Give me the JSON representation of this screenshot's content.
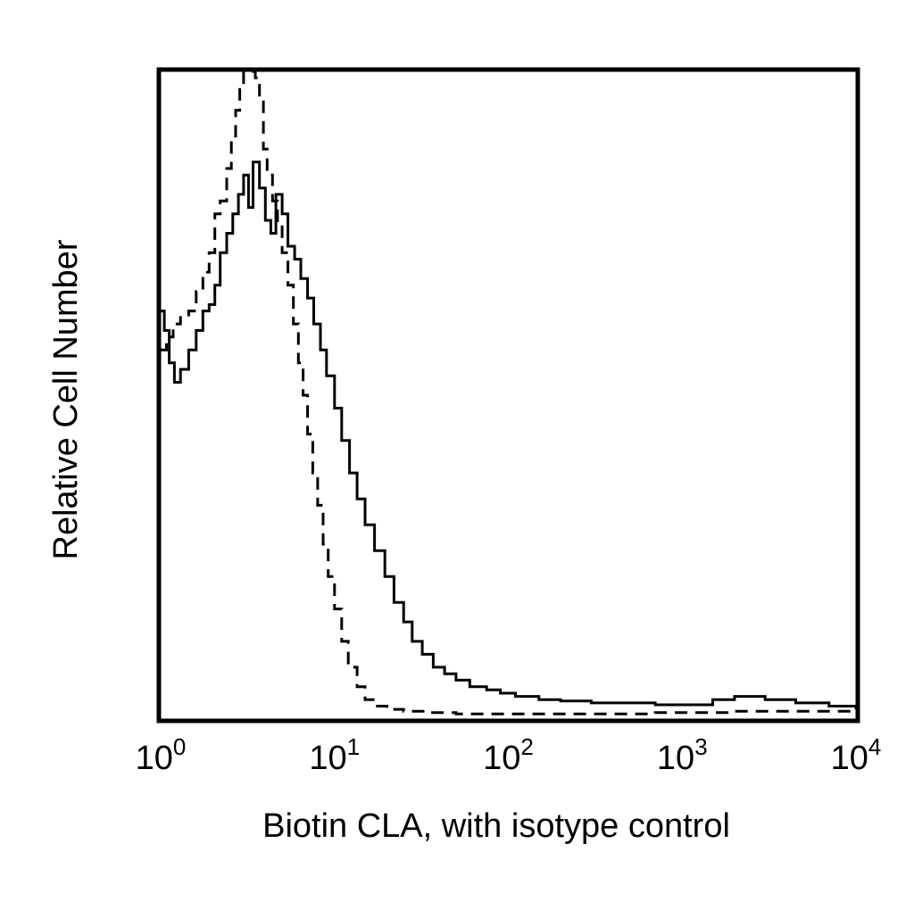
{
  "chart_data": {
    "type": "line",
    "title": "",
    "xlabel": "Biotin CLA, with isotype control",
    "ylabel": "Relative Cell Number",
    "x_scale": "log",
    "xlim": [
      1,
      10000
    ],
    "ylim": [
      0,
      100
    ],
    "grid": false,
    "legend": "none",
    "x_ticks": [
      {
        "value": 1,
        "base": "10",
        "exp": "0"
      },
      {
        "value": 10,
        "base": "10",
        "exp": "1"
      },
      {
        "value": 100,
        "base": "10",
        "exp": "2"
      },
      {
        "value": 1000,
        "base": "10",
        "exp": "3"
      },
      {
        "value": 10000,
        "base": "10",
        "exp": "4"
      }
    ],
    "colors": {
      "line": "#000000",
      "background": "#ffffff"
    },
    "series": [
      {
        "style": "solid",
        "x": [
          1.0,
          1.05,
          1.12,
          1.2,
          1.3,
          1.45,
          1.6,
          1.75,
          1.9,
          2.05,
          2.2,
          2.4,
          2.6,
          2.8,
          3.0,
          3.2,
          3.4,
          3.7,
          4.0,
          4.3,
          4.6,
          5.0,
          5.4,
          5.9,
          6.4,
          7.0,
          7.6,
          8.3,
          9.0,
          10.0,
          11.0,
          12.2,
          13.5,
          15.0,
          17.0,
          19.5,
          22.0,
          25.0,
          28.0,
          32.0,
          37.0,
          43.0,
          50.0,
          60.0,
          75.0,
          90.0,
          110.0,
          150.0,
          200.0,
          300.0,
          450.0,
          700.0,
          1000.0,
          1500.0,
          2000.0,
          3000.0,
          4500.0,
          7000.0,
          10000.0
        ],
        "y": [
          63,
          60,
          55,
          52,
          54,
          57,
          60,
          63,
          64,
          67,
          72,
          75,
          78,
          81,
          84,
          79,
          86,
          82,
          77,
          75,
          81,
          78,
          73,
          71,
          68,
          65,
          61,
          57,
          53,
          48,
          43,
          38,
          34,
          30,
          26,
          22,
          18,
          15,
          12,
          10,
          8,
          7,
          6,
          5,
          4.5,
          4,
          3.5,
          3,
          2.8,
          2.5,
          2.5,
          2.2,
          2.2,
          3,
          3.5,
          3,
          2.5,
          2,
          1.5
        ]
      },
      {
        "style": "dashed",
        "x": [
          1.0,
          1.08,
          1.18,
          1.3,
          1.45,
          1.6,
          1.75,
          1.9,
          2.05,
          2.2,
          2.4,
          2.55,
          2.7,
          2.85,
          3.0,
          3.15,
          3.3,
          3.5,
          3.7,
          3.9,
          4.1,
          4.4,
          4.7,
          5.0,
          5.4,
          5.8,
          6.2,
          6.6,
          7.0,
          7.5,
          8.0,
          8.6,
          9.2,
          10.0,
          11.0,
          12.0,
          13.5,
          15.0,
          17.0,
          20.0,
          25.0,
          35.0,
          50.0,
          70.0,
          100.0,
          150.0,
          250.0,
          400.0,
          700.0,
          1000.0,
          2000.0,
          4000.0,
          10000.0
        ],
        "y": [
          57,
          59,
          61,
          62,
          63,
          66,
          69,
          72,
          78,
          80,
          85,
          90,
          94,
          98,
          102,
          105,
          102,
          99,
          96,
          88,
          84,
          80,
          76,
          72,
          67,
          61,
          55,
          50,
          44,
          38,
          33,
          27,
          22,
          17,
          12,
          8,
          5,
          3,
          2,
          1.5,
          1.2,
          1.0,
          0.8,
          0.8,
          0.8,
          0.8,
          0.8,
          0.8,
          1.0,
          1.0,
          1.2,
          1.2,
          1.0
        ]
      }
    ]
  }
}
